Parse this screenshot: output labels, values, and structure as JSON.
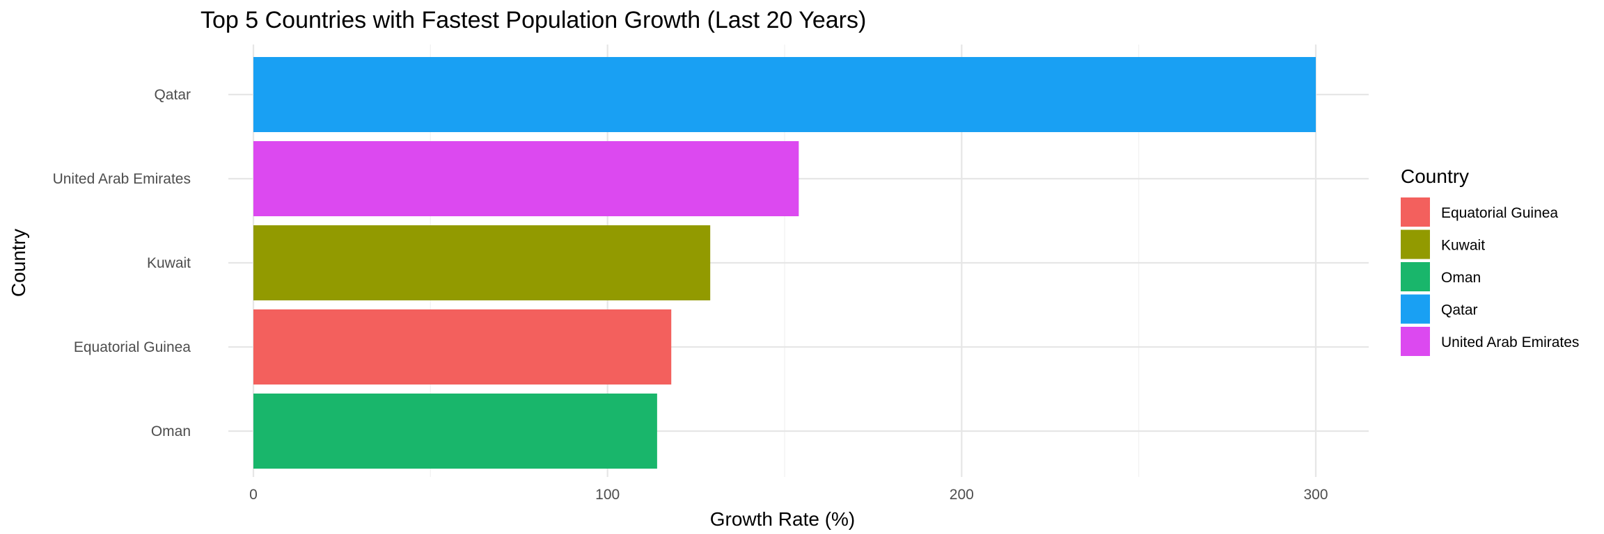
{
  "chart_data": {
    "type": "bar",
    "orientation": "horizontal",
    "title": "Top 5 Countries with Fastest Population Growth (Last 20 Years)",
    "xlabel": "Growth Rate (%)",
    "ylabel": "Country",
    "categories": [
      "Qatar",
      "United Arab Emirates",
      "Kuwait",
      "Equatorial Guinea",
      "Oman"
    ],
    "values": [
      300,
      154,
      129,
      118,
      114
    ],
    "colors": [
      "#19a0f3",
      "#dc49f0",
      "#929a00",
      "#f3605d",
      "#19b66b"
    ],
    "xlim": [
      0,
      315
    ],
    "xticks": [
      0,
      100,
      200,
      300
    ],
    "grid": true,
    "legend": {
      "title": "Country",
      "placement": "right",
      "entries": [
        {
          "label": "Equatorial Guinea",
          "color": "#f3605d"
        },
        {
          "label": "Kuwait",
          "color": "#929a00"
        },
        {
          "label": "Oman",
          "color": "#19b66b"
        },
        {
          "label": "Qatar",
          "color": "#19a0f3"
        },
        {
          "label": "United Arab Emirates",
          "color": "#dc49f0"
        }
      ]
    }
  }
}
